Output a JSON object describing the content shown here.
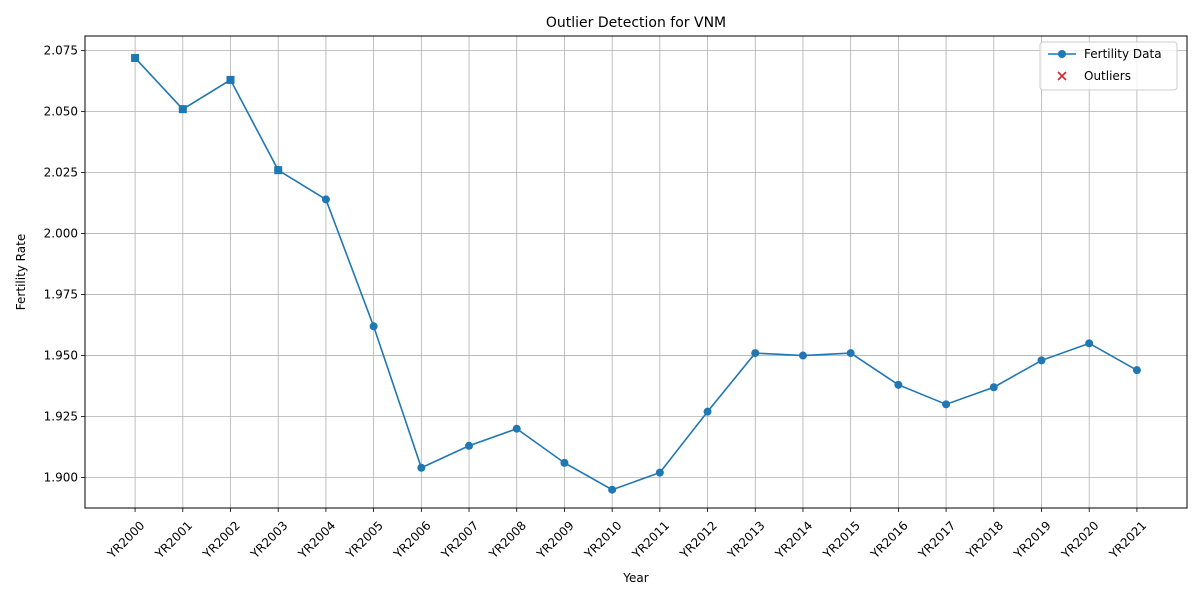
{
  "chart_data": {
    "type": "line",
    "title": "Outlier Detection for VNM",
    "xlabel": "Year",
    "ylabel": "Fertility Rate",
    "categories": [
      "YR2000",
      "YR2001",
      "YR2002",
      "YR2003",
      "YR2004",
      "YR2005",
      "YR2006",
      "YR2007",
      "YR2008",
      "YR2009",
      "YR2010",
      "YR2011",
      "YR2012",
      "YR2013",
      "YR2014",
      "YR2015",
      "YR2016",
      "YR2017",
      "YR2018",
      "YR2019",
      "YR2020",
      "YR2021"
    ],
    "series": [
      {
        "name": "Fertility Data",
        "color": "#1f77b4",
        "marker": "circle",
        "values": [
          2.072,
          2.051,
          2.063,
          2.026,
          2.014,
          1.962,
          1.904,
          1.913,
          1.92,
          1.906,
          1.895,
          1.902,
          1.927,
          1.951,
          1.95,
          1.951,
          1.938,
          1.93,
          1.937,
          1.948,
          1.955,
          1.944
        ]
      },
      {
        "name": "Outliers",
        "color": "#d62728",
        "marker": "x",
        "values": [
          null,
          null,
          null,
          null,
          null,
          null,
          null,
          null,
          null,
          null,
          null,
          null,
          null,
          null,
          null,
          null,
          null,
          null,
          null,
          null,
          null,
          null
        ]
      }
    ],
    "square_marker_indices": [
      0,
      1,
      2,
      3
    ],
    "ylim": [
      1.8875,
      2.081
    ],
    "yticks": [
      1.9,
      1.925,
      1.95,
      1.975,
      2.0,
      2.025,
      2.05,
      2.075
    ],
    "ytick_labels": [
      "1.900",
      "1.925",
      "1.950",
      "1.975",
      "2.000",
      "2.025",
      "2.050",
      "2.075"
    ],
    "grid": true,
    "legend_position": "top-right"
  }
}
